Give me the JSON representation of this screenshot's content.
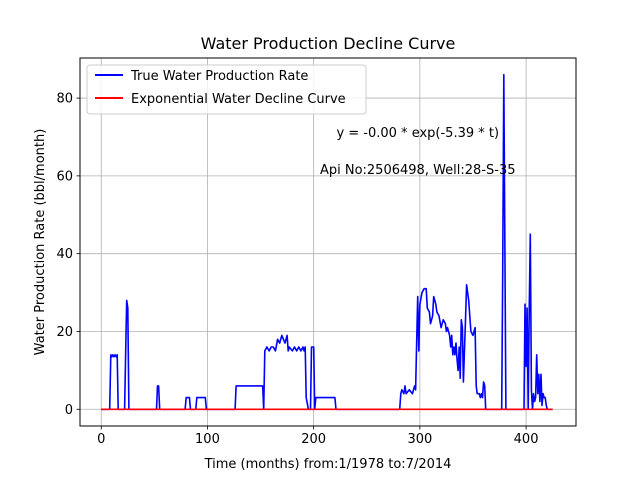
{
  "chart_data": {
    "type": "line",
    "title": "Water Production Decline Curve",
    "xlabel": "Time (months) from:1/1978 to:7/2014",
    "ylabel": "Water Production Rate (bbl/month)",
    "xlim": [
      -20,
      447
    ],
    "ylim": [
      -4.3,
      90.3
    ],
    "xticks": [
      0,
      100,
      200,
      300,
      400
    ],
    "yticks": [
      0,
      20,
      40,
      60,
      80
    ],
    "grid": true,
    "legend_position": "upper-left",
    "annotations": [
      {
        "text": "y = -0.00 * exp(-5.39 * t)",
        "x": 298,
        "y": 70
      },
      {
        "text": "Api No:2506498, Well:28-S-35",
        "x": 298,
        "y": 60.5
      }
    ],
    "series": [
      {
        "name": "True Water Production Rate",
        "color": "#0000ff",
        "points": [
          [
            0,
            0
          ],
          [
            8,
            0
          ],
          [
            9,
            14
          ],
          [
            10,
            13.5
          ],
          [
            11,
            14
          ],
          [
            12,
            13.5
          ],
          [
            13,
            14
          ],
          [
            14,
            13.5
          ],
          [
            15,
            14
          ],
          [
            16,
            0
          ],
          [
            22,
            0
          ],
          [
            23,
            15
          ],
          [
            24,
            28
          ],
          [
            25,
            26
          ],
          [
            26,
            0
          ],
          [
            52,
            0
          ],
          [
            53,
            6
          ],
          [
            54,
            6
          ],
          [
            55,
            0
          ],
          [
            79,
            0
          ],
          [
            80,
            3
          ],
          [
            83,
            3
          ],
          [
            84,
            0
          ],
          [
            89,
            0
          ],
          [
            90,
            3
          ],
          [
            98,
            3
          ],
          [
            99,
            0
          ],
          [
            126,
            0
          ],
          [
            127,
            6
          ],
          [
            152,
            6
          ],
          [
            153,
            0
          ],
          [
            154,
            15
          ],
          [
            156,
            16
          ],
          [
            158,
            15
          ],
          [
            160,
            16
          ],
          [
            162,
            16
          ],
          [
            164,
            15
          ],
          [
            166,
            18
          ],
          [
            168,
            17
          ],
          [
            170,
            19
          ],
          [
            173,
            17
          ],
          [
            175,
            19
          ],
          [
            176,
            15
          ],
          [
            177,
            16
          ],
          [
            180,
            15
          ],
          [
            182,
            16
          ],
          [
            184,
            15
          ],
          [
            186,
            16
          ],
          [
            188,
            15
          ],
          [
            190,
            16
          ],
          [
            191,
            15
          ],
          [
            192,
            16
          ],
          [
            193,
            3
          ],
          [
            195,
            0
          ],
          [
            197,
            0
          ],
          [
            198,
            16
          ],
          [
            200,
            16
          ],
          [
            201,
            0
          ],
          [
            202,
            3
          ],
          [
            220,
            3
          ],
          [
            221,
            0
          ],
          [
            281,
            0
          ],
          [
            282,
            4
          ],
          [
            283,
            5
          ],
          [
            285,
            4
          ],
          [
            286,
            6
          ],
          [
            287,
            4
          ],
          [
            290,
            5
          ],
          [
            293,
            4
          ],
          [
            295,
            6
          ],
          [
            296,
            5
          ],
          [
            298,
            29
          ],
          [
            299,
            15
          ],
          [
            300,
            27
          ],
          [
            302,
            30
          ],
          [
            304,
            31
          ],
          [
            306,
            31
          ],
          [
            307,
            26
          ],
          [
            309,
            25
          ],
          [
            310,
            22
          ],
          [
            312,
            24
          ],
          [
            313,
            29
          ],
          [
            315,
            27
          ],
          [
            316,
            25
          ],
          [
            318,
            24
          ],
          [
            320,
            21
          ],
          [
            322,
            23
          ],
          [
            324,
            22
          ],
          [
            325,
            20
          ],
          [
            326,
            21
          ],
          [
            328,
            19
          ],
          [
            329,
            16
          ],
          [
            330,
            19
          ],
          [
            331,
            14
          ],
          [
            332,
            16
          ],
          [
            333,
            14
          ],
          [
            334,
            17
          ],
          [
            335,
            13
          ],
          [
            336,
            10
          ],
          [
            337,
            16
          ],
          [
            338,
            8
          ],
          [
            339,
            23
          ],
          [
            340,
            21
          ],
          [
            341,
            7
          ],
          [
            343,
            23
          ],
          [
            344,
            32
          ],
          [
            346,
            28
          ],
          [
            348,
            20
          ],
          [
            350,
            19
          ],
          [
            352,
            21
          ],
          [
            353,
            6
          ],
          [
            354,
            4
          ],
          [
            356,
            4
          ],
          [
            357,
            3
          ],
          [
            358,
            4
          ],
          [
            359,
            3
          ],
          [
            360,
            7
          ],
          [
            361,
            6
          ],
          [
            362,
            0
          ],
          [
            377,
            0
          ],
          [
            378,
            35
          ],
          [
            379,
            86
          ],
          [
            380,
            45
          ],
          [
            381,
            0
          ],
          [
            398,
            0
          ],
          [
            399,
            27
          ],
          [
            400,
            11
          ],
          [
            401,
            26
          ],
          [
            402,
            0
          ],
          [
            403,
            27
          ],
          [
            404,
            45
          ],
          [
            405,
            5
          ],
          [
            406,
            0
          ],
          [
            407,
            4
          ],
          [
            408,
            2
          ],
          [
            409,
            3
          ],
          [
            410,
            14
          ],
          [
            411,
            4
          ],
          [
            412,
            9
          ],
          [
            413,
            2
          ],
          [
            414,
            9
          ],
          [
            415,
            1
          ],
          [
            416,
            4
          ],
          [
            417,
            3
          ],
          [
            418,
            3
          ],
          [
            419,
            1
          ],
          [
            420,
            0
          ],
          [
            425,
            0
          ]
        ]
      },
      {
        "name": "Exponential Water Decline Curve",
        "color": "#ff0000",
        "points": [
          [
            0,
            0
          ],
          [
            425,
            0
          ]
        ]
      }
    ]
  }
}
